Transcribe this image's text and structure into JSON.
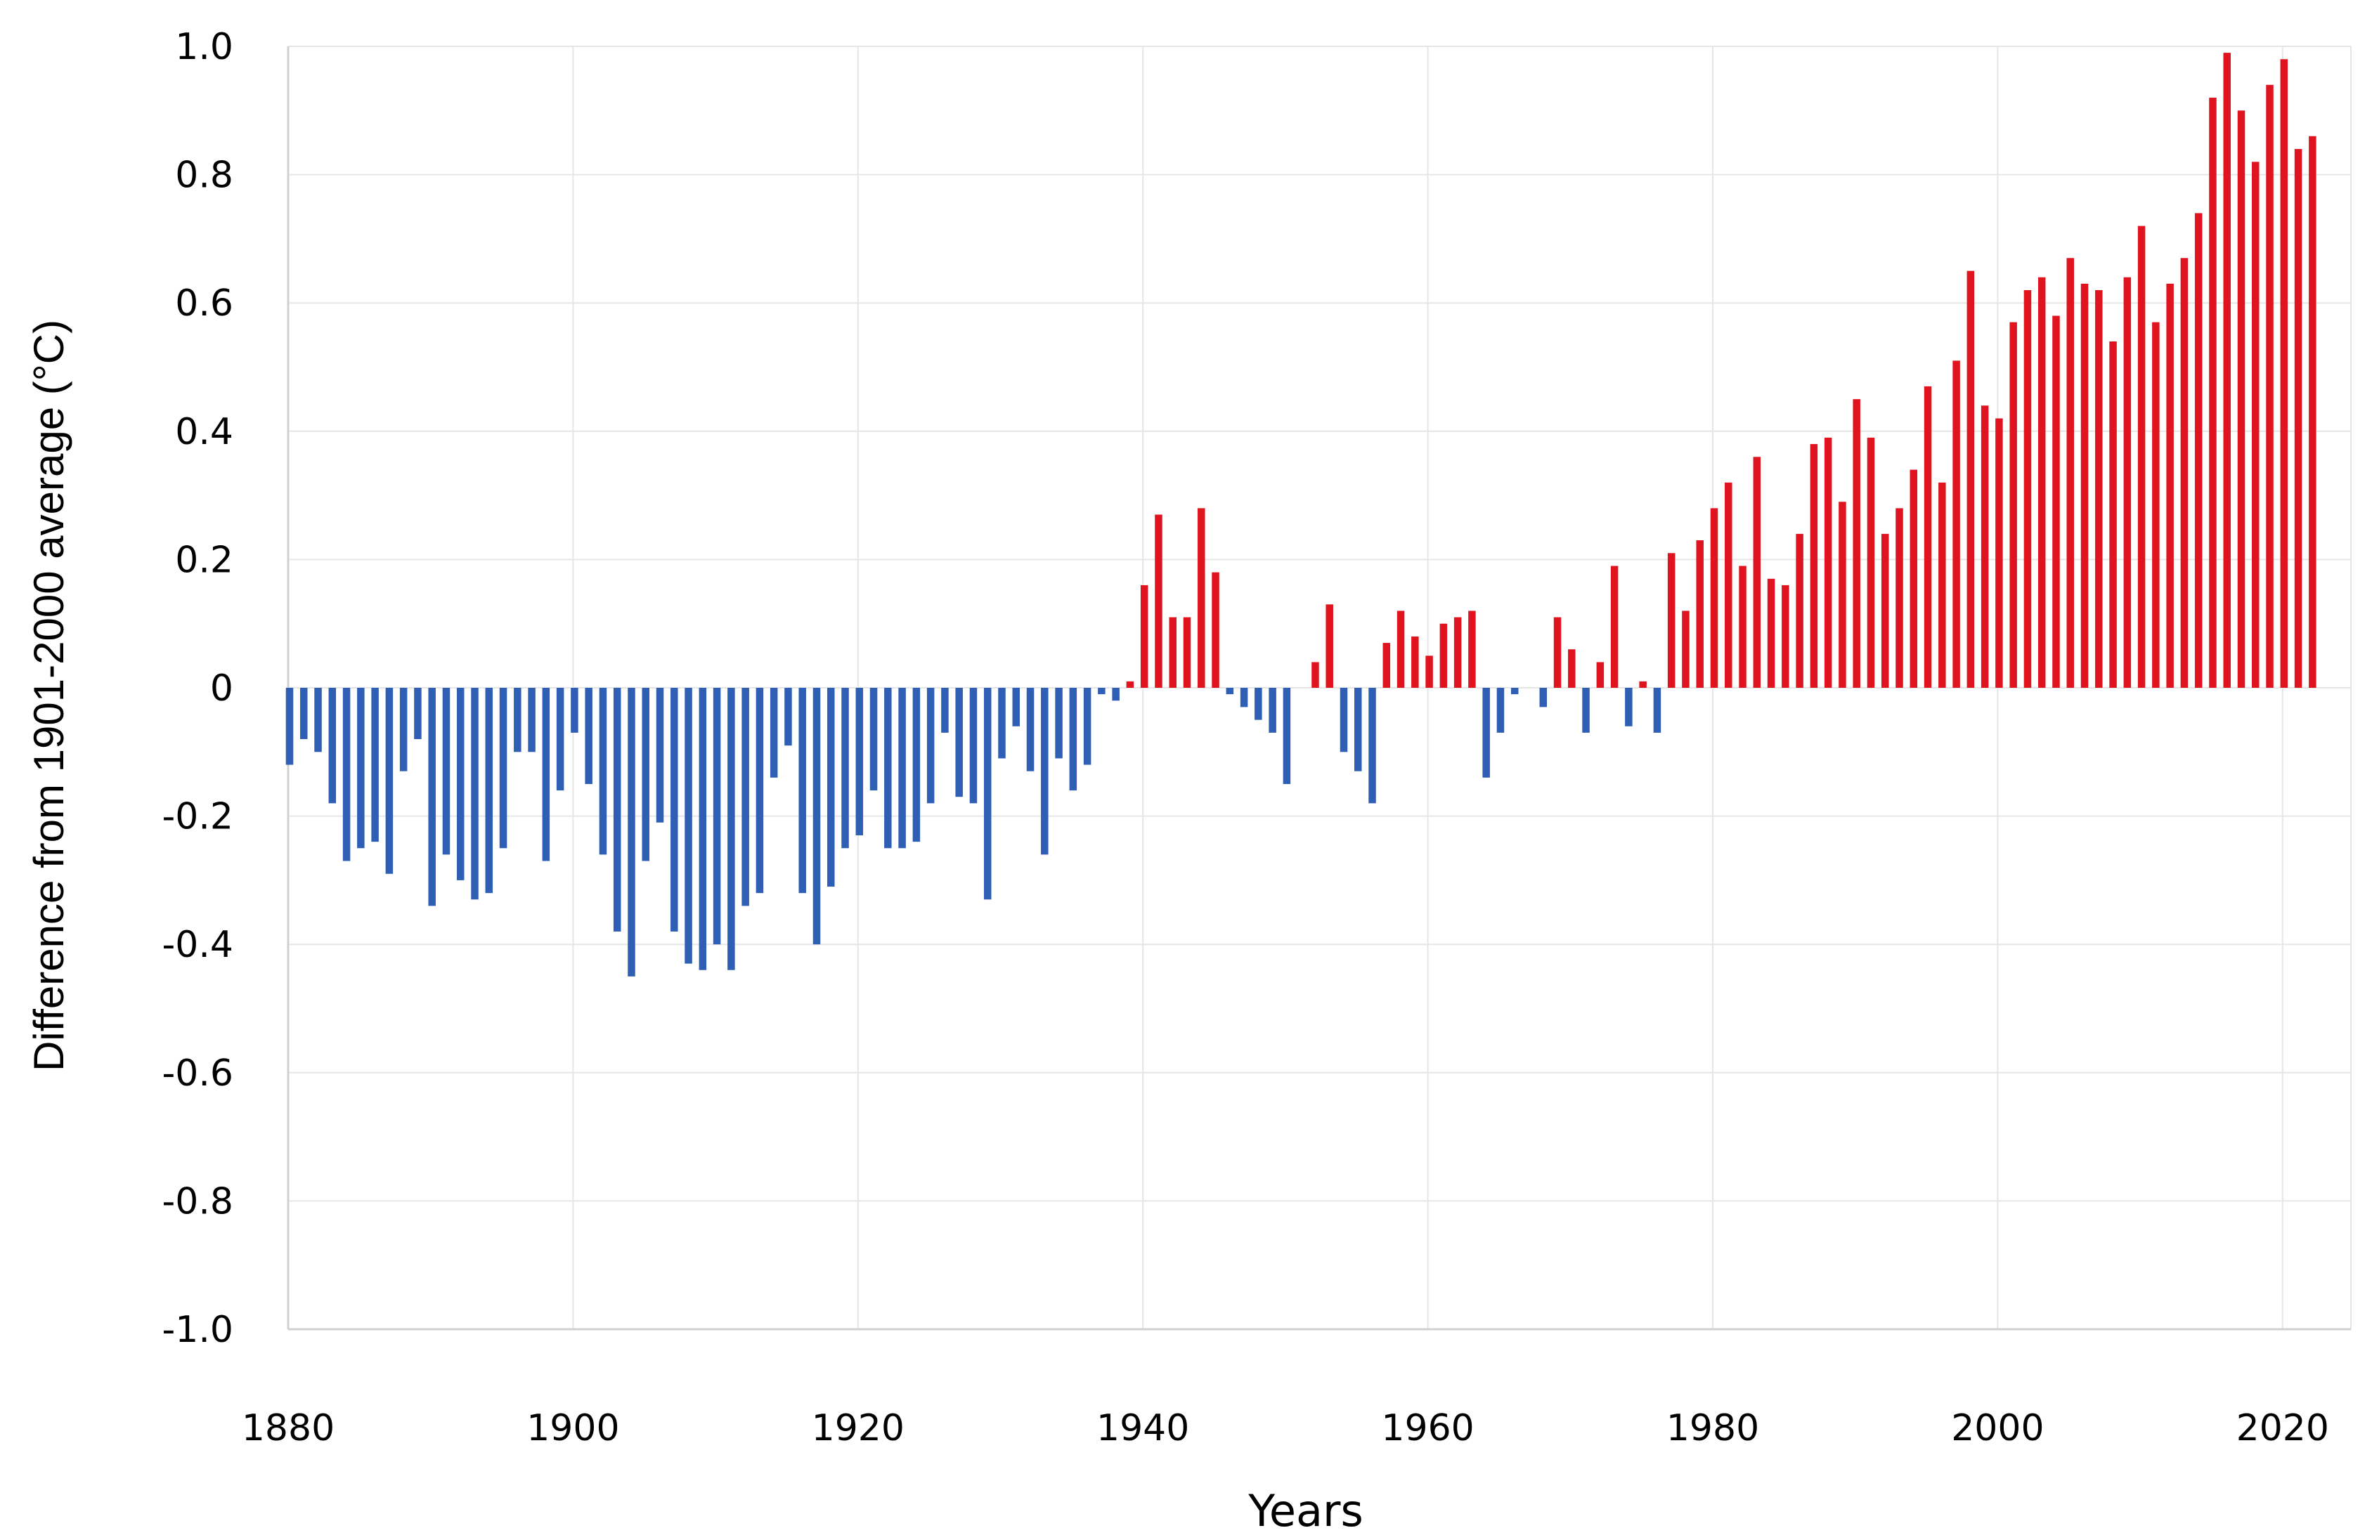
{
  "chart_data": {
    "type": "bar",
    "title": "",
    "xlabel": "Years",
    "ylabel": "Difference from 1901-2000 average (°C)",
    "xlim": [
      1880,
      2025
    ],
    "ylim": [
      -1.0,
      1.0
    ],
    "x_ticks": [
      "1880",
      "1900",
      "1920",
      "1940",
      "1960",
      "1980",
      "2000",
      "2020"
    ],
    "y_ticks": [
      "1.0",
      "0.8",
      "0.6",
      "0.4",
      "0.2",
      "0",
      "-0.2",
      "-0.4",
      "-0.6",
      "-0.8",
      "-1.0"
    ],
    "grid": true,
    "legend": "none",
    "colors": {
      "negative": "#2f5eb5",
      "positive": "#e0141f",
      "grid": "#e6e6e6",
      "axis": "#d0d0d0"
    },
    "start_year": 1880,
    "years": [
      1880,
      1881,
      1882,
      1883,
      1884,
      1885,
      1886,
      1887,
      1888,
      1889,
      1890,
      1891,
      1892,
      1893,
      1894,
      1895,
      1896,
      1897,
      1898,
      1899,
      1900,
      1901,
      1902,
      1903,
      1904,
      1905,
      1906,
      1907,
      1908,
      1909,
      1910,
      1911,
      1912,
      1913,
      1914,
      1915,
      1916,
      1917,
      1918,
      1919,
      1920,
      1921,
      1922,
      1923,
      1924,
      1925,
      1926,
      1927,
      1928,
      1929,
      1930,
      1931,
      1932,
      1933,
      1934,
      1935,
      1936,
      1937,
      1938,
      1939,
      1940,
      1941,
      1942,
      1943,
      1944,
      1945,
      1946,
      1947,
      1948,
      1949,
      1950,
      1951,
      1952,
      1953,
      1954,
      1955,
      1956,
      1957,
      1958,
      1959,
      1960,
      1961,
      1962,
      1963,
      1964,
      1965,
      1966,
      1967,
      1968,
      1969,
      1970,
      1971,
      1972,
      1973,
      1974,
      1975,
      1976,
      1977,
      1978,
      1979,
      1980,
      1981,
      1982,
      1983,
      1984,
      1985,
      1986,
      1987,
      1988,
      1989,
      1990,
      1991,
      1992,
      1993,
      1994,
      1995,
      1996,
      1997,
      1998,
      1999,
      2000,
      2001,
      2002,
      2003,
      2004,
      2005,
      2006,
      2007,
      2008,
      2009,
      2010,
      2011,
      2012,
      2013,
      2014,
      2015,
      2016,
      2017,
      2018,
      2019,
      2020,
      2021,
      2022
    ],
    "values": [
      -0.12,
      -0.08,
      -0.1,
      -0.18,
      -0.27,
      -0.25,
      -0.24,
      -0.29,
      -0.13,
      -0.08,
      -0.34,
      -0.26,
      -0.3,
      -0.33,
      -0.32,
      -0.25,
      -0.1,
      -0.1,
      -0.27,
      -0.16,
      -0.07,
      -0.15,
      -0.26,
      -0.38,
      -0.45,
      -0.27,
      -0.21,
      -0.38,
      -0.43,
      -0.44,
      -0.4,
      -0.44,
      -0.34,
      -0.32,
      -0.14,
      -0.09,
      -0.32,
      -0.4,
      -0.31,
      -0.25,
      -0.23,
      -0.16,
      -0.25,
      -0.25,
      -0.24,
      -0.18,
      -0.07,
      -0.17,
      -0.18,
      -0.33,
      -0.11,
      -0.06,
      -0.13,
      -0.26,
      -0.11,
      -0.16,
      -0.12,
      -0.01,
      -0.02,
      0.01,
      0.16,
      0.27,
      0.11,
      0.11,
      0.28,
      0.18,
      -0.01,
      -0.03,
      -0.05,
      -0.07,
      -0.15,
      0.0,
      0.04,
      0.13,
      -0.1,
      -0.13,
      -0.18,
      0.07,
      0.12,
      0.08,
      0.05,
      0.1,
      0.11,
      0.12,
      -0.14,
      -0.07,
      -0.01,
      0.0,
      -0.03,
      0.11,
      0.06,
      -0.07,
      0.04,
      0.19,
      -0.06,
      0.01,
      -0.07,
      0.21,
      0.12,
      0.23,
      0.28,
      0.32,
      0.19,
      0.36,
      0.17,
      0.16,
      0.24,
      0.38,
      0.39,
      0.29,
      0.45,
      0.39,
      0.24,
      0.28,
      0.34,
      0.47,
      0.32,
      0.51,
      0.65,
      0.44,
      0.42,
      0.57,
      0.62,
      0.64,
      0.58,
      0.67,
      0.63,
      0.62,
      0.54,
      0.64,
      0.72,
      0.57,
      0.63,
      0.67,
      0.74,
      0.92,
      0.99,
      0.9,
      0.82,
      0.94,
      0.98,
      0.84,
      0.86
    ]
  }
}
